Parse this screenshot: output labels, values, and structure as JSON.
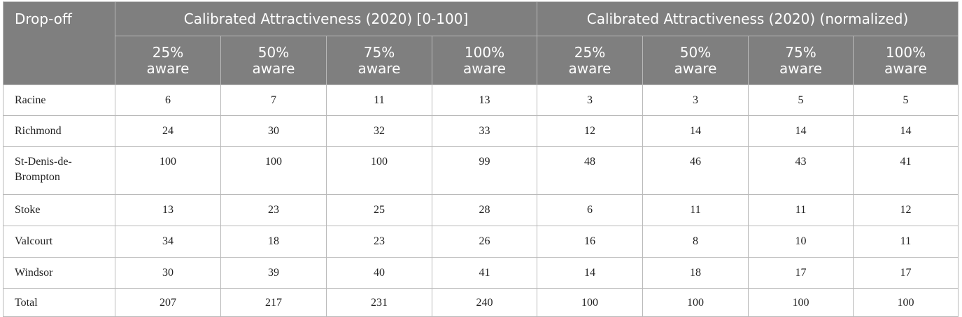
{
  "table": {
    "corner_header": "Drop-off",
    "groups": [
      "Calibrated Attractiveness (2020) [0-100]",
      "Calibrated Attractiveness (2020) (normalized)"
    ],
    "subheaders": [
      [
        "25%",
        "aware"
      ],
      [
        "50%",
        "aware"
      ],
      [
        "75%",
        "aware"
      ],
      [
        "100%",
        "aware"
      ],
      [
        "25%",
        "aware"
      ],
      [
        "50%",
        "aware"
      ],
      [
        "75%",
        "aware"
      ],
      [
        "100%",
        "aware"
      ]
    ],
    "rows": [
      {
        "label": "Racine",
        "values": [
          "6",
          "7",
          "11",
          "13",
          "3",
          "3",
          "5",
          "5"
        ]
      },
      {
        "label": "Richmond",
        "values": [
          "24",
          "30",
          "32",
          "33",
          "12",
          "14",
          "14",
          "14"
        ]
      },
      {
        "label": "St-Denis-de-Brompton",
        "values": [
          "100",
          "100",
          "100",
          "99",
          "48",
          "46",
          "43",
          "41"
        ]
      },
      {
        "label": "Stoke",
        "values": [
          "13",
          "23",
          "25",
          "28",
          "6",
          "11",
          "11",
          "12"
        ]
      },
      {
        "label": "Valcourt",
        "values": [
          "34",
          "18",
          "23",
          "26",
          "16",
          "8",
          "10",
          "11"
        ]
      },
      {
        "label": "Windsor",
        "values": [
          "30",
          "39",
          "40",
          "41",
          "14",
          "18",
          "17",
          "17"
        ]
      },
      {
        "label": "Total",
        "values": [
          "207",
          "217",
          "231",
          "240",
          "100",
          "100",
          "100",
          "100"
        ]
      }
    ]
  }
}
